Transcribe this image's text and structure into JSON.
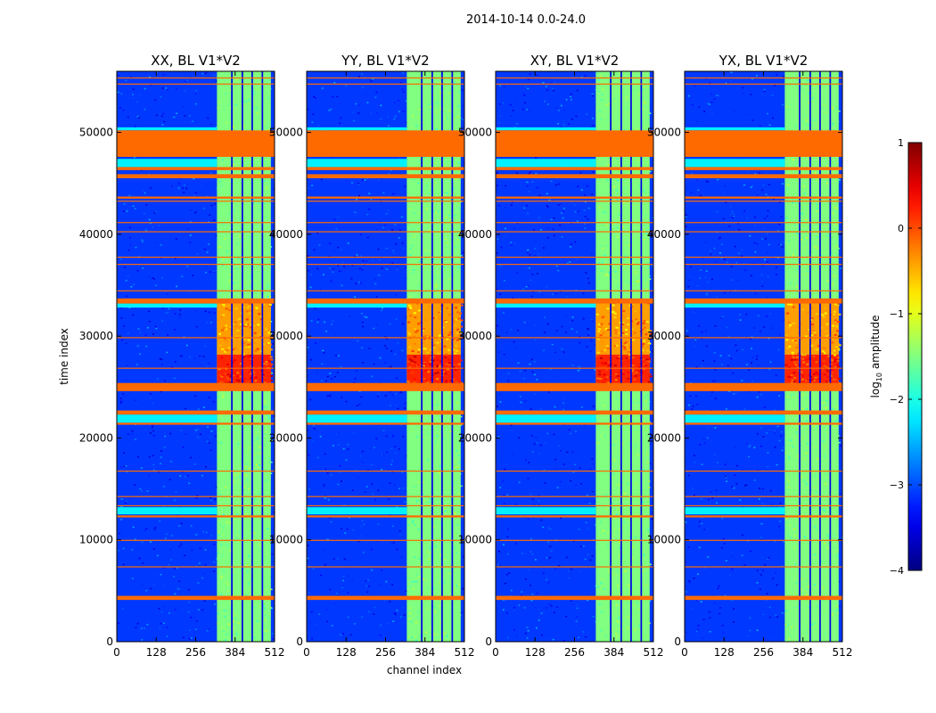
{
  "figure_title": "2014-10-14 0.0-24.0",
  "chart_data": {
    "type": "heatmap",
    "title": "2014-10-14 0.0-24.0",
    "xlabel": "channel index",
    "ylabel": "time index",
    "colorbar_label_prefix": "log",
    "colorbar_label_sub": "10",
    "colorbar_label_suffix": " amplitude",
    "colormap": "jet",
    "xlim": [
      0,
      512
    ],
    "ylim": [
      0,
      56000
    ],
    "x_ticks": [
      0,
      128,
      256,
      384,
      512
    ],
    "y_ticks": [
      0,
      10000,
      20000,
      30000,
      40000,
      50000
    ],
    "color_range": [
      -4,
      1
    ],
    "colorbar_ticks": [
      "1",
      "0",
      "−1",
      "−2",
      "−3",
      "−4"
    ],
    "flag_color": "#ff6a00",
    "panels": [
      {
        "title": "XX, BL V1*V2",
        "pol": "XX"
      },
      {
        "title": "YY, BL V1*V2",
        "pol": "YY"
      },
      {
        "title": "XY, BL V1*V2",
        "pol": "XY"
      },
      {
        "title": "YX, BL V1*V2",
        "pol": "YX"
      }
    ],
    "background_level": -3.1,
    "active_band_channels": [
      325,
      500
    ],
    "band_level": -1.5,
    "band_gap_channels": [
      [
        371,
        376
      ],
      [
        405,
        410
      ],
      [
        437,
        442
      ],
      [
        470,
        475
      ]
    ],
    "hot_time_ranges": [
      {
        "t": [
          24800,
          28200
        ],
        "level": 0.2
      },
      {
        "t": [
          28200,
          33500
        ],
        "level": -0.4
      }
    ],
    "flagged_time_ranges": [
      [
        4100,
        4500
      ],
      [
        7300,
        7400
      ],
      [
        9900,
        10000
      ],
      [
        12200,
        12400
      ],
      [
        13300,
        13400
      ],
      [
        14200,
        14300
      ],
      [
        16700,
        16800
      ],
      [
        21300,
        21500
      ],
      [
        22300,
        22700
      ],
      [
        24600,
        25400
      ],
      [
        26800,
        26900
      ],
      [
        29800,
        29900
      ],
      [
        33200,
        33700
      ],
      [
        34400,
        34500
      ],
      [
        37000,
        37100
      ],
      [
        37700,
        37800
      ],
      [
        40200,
        40300
      ],
      [
        41100,
        41200
      ],
      [
        43200,
        43300
      ],
      [
        43500,
        43700
      ],
      [
        45500,
        45900
      ],
      [
        46300,
        46600
      ],
      [
        47600,
        50200
      ],
      [
        54700,
        54800
      ],
      [
        55300,
        55400
      ]
    ],
    "rfi_time_ranges": [
      {
        "t": [
          12500,
          13200
        ],
        "level": -2.2
      },
      {
        "t": [
          21500,
          22300
        ],
        "level": -2.2
      },
      {
        "t": [
          32800,
          33200
        ],
        "level": -2.2
      },
      {
        "t": [
          46600,
          47400
        ],
        "level": -2.2
      },
      {
        "t": [
          50200,
          50500
        ],
        "level": -2.2
      }
    ]
  }
}
